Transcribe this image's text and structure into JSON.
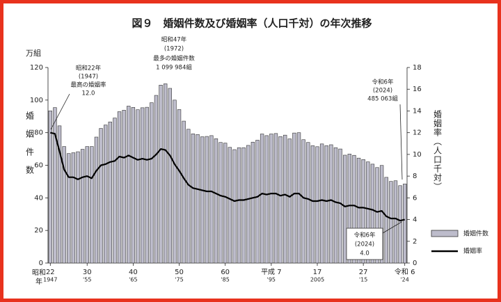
{
  "chart_data": {
    "type": "bar_line",
    "title": "図９　婚姻件数及び婚姻率（人口千対）の年次推移",
    "y_unit": "万組",
    "y_label": "婚姻件数",
    "y2_label": "婚姻率（人口千対）",
    "x_era_label": "昭和",
    "x_unit_label": "年",
    "categories": [
      "22",
      null,
      null,
      null,
      null,
      null,
      null,
      null,
      "30",
      null,
      null,
      null,
      null,
      null,
      null,
      null,
      null,
      null,
      "40",
      null,
      null,
      null,
      null,
      null,
      null,
      null,
      null,
      null,
      "50",
      null,
      null,
      null,
      null,
      null,
      null,
      null,
      null,
      null,
      "60",
      null,
      null,
      null,
      null,
      null,
      null,
      null,
      null,
      null,
      "平成 7",
      null,
      null,
      null,
      null,
      null,
      null,
      null,
      null,
      null,
      "17",
      null,
      null,
      null,
      null,
      null,
      null,
      null,
      null,
      null,
      "27",
      null,
      null,
      null,
      null,
      null,
      null,
      null,
      null,
      "令和 6"
    ],
    "category_years": [
      "1947",
      null,
      null,
      null,
      null,
      null,
      null,
      null,
      "'55",
      null,
      null,
      null,
      null,
      null,
      null,
      null,
      null,
      null,
      "'65",
      null,
      null,
      null,
      null,
      null,
      null,
      null,
      null,
      null,
      "'75",
      null,
      null,
      null,
      null,
      null,
      null,
      null,
      null,
      null,
      "'85",
      null,
      null,
      null,
      null,
      null,
      null,
      null,
      null,
      null,
      "'95",
      null,
      null,
      null,
      null,
      null,
      null,
      null,
      null,
      null,
      "2005",
      null,
      null,
      null,
      null,
      null,
      null,
      null,
      null,
      null,
      "'15",
      null,
      null,
      null,
      null,
      null,
      null,
      null,
      null,
      "'24"
    ],
    "series": [
      {
        "name": "婚姻件数",
        "color": "#bdbccb",
        "values": [
          93.4,
          95.4,
          84.2,
          71.5,
          67.2,
          67.7,
          68.3,
          69.8,
          71.5,
          71.5,
          77.3,
          82.6,
          84.7,
          86.6,
          89.0,
          92.9,
          93.8,
          96.3,
          95.5,
          94.1,
          95.3,
          95.6,
          98.4,
          102.9,
          109.2,
          110.0,
          107.2,
          100.0,
          94.2,
          87.1,
          82.1,
          79.3,
          78.9,
          77.5,
          77.7,
          78.2,
          76.3,
          74.0,
          73.6,
          71.0,
          69.6,
          70.8,
          70.8,
          72.2,
          74.2,
          75.4,
          79.2,
          78.2,
          79.2,
          79.5,
          77.6,
          78.5,
          76.2,
          79.8,
          80.0,
          75.7,
          74.0,
          72.0,
          71.4,
          73.1,
          72.0,
          72.6,
          70.8,
          70.0,
          66.2,
          66.9,
          66.1,
          64.4,
          63.5,
          62.1,
          60.7,
          58.6,
          59.9,
          52.6,
          50.1,
          50.5,
          47.5,
          48.5
        ]
      },
      {
        "name": "婚姻率",
        "color": "#000000",
        "axis": "y2",
        "values": [
          12.0,
          11.9,
          10.3,
          8.6,
          7.9,
          7.9,
          7.7,
          7.9,
          8.0,
          7.8,
          8.5,
          9.0,
          9.1,
          9.3,
          9.4,
          9.8,
          9.7,
          9.9,
          9.7,
          9.5,
          9.6,
          9.5,
          9.6,
          10.0,
          10.5,
          10.4,
          9.9,
          9.1,
          8.5,
          7.8,
          7.2,
          6.9,
          6.8,
          6.7,
          6.6,
          6.6,
          6.4,
          6.2,
          6.1,
          5.9,
          5.7,
          5.8,
          5.8,
          5.9,
          6.0,
          6.1,
          6.4,
          6.3,
          6.4,
          6.4,
          6.2,
          6.3,
          6.1,
          6.4,
          6.4,
          6.0,
          5.9,
          5.7,
          5.7,
          5.8,
          5.7,
          5.8,
          5.6,
          5.5,
          5.2,
          5.3,
          5.3,
          5.1,
          5.1,
          5.0,
          4.9,
          4.7,
          4.8,
          4.3,
          4.1,
          4.1,
          3.9,
          4.0
        ]
      }
    ],
    "ylim": [
      0,
      120
    ],
    "yticks": [
      0,
      20,
      40,
      60,
      80,
      100,
      120
    ],
    "y2lim": [
      0,
      18
    ],
    "y2ticks": [
      0,
      2,
      4,
      6,
      8,
      10,
      12,
      14,
      16,
      18
    ],
    "annotations": [
      {
        "lines": [
          "昭和22年",
          "(1947)",
          "最高の婚姻率",
          "12.0"
        ]
      },
      {
        "lines": [
          "昭和47年",
          "(1972)",
          "最多の婚姻件数",
          "1 099 984組"
        ]
      },
      {
        "lines": [
          "令和6年",
          "(2024)",
          "485 063組"
        ]
      },
      {
        "lines": [
          "令和6年",
          "(2024)",
          "4.0"
        ]
      }
    ]
  }
}
